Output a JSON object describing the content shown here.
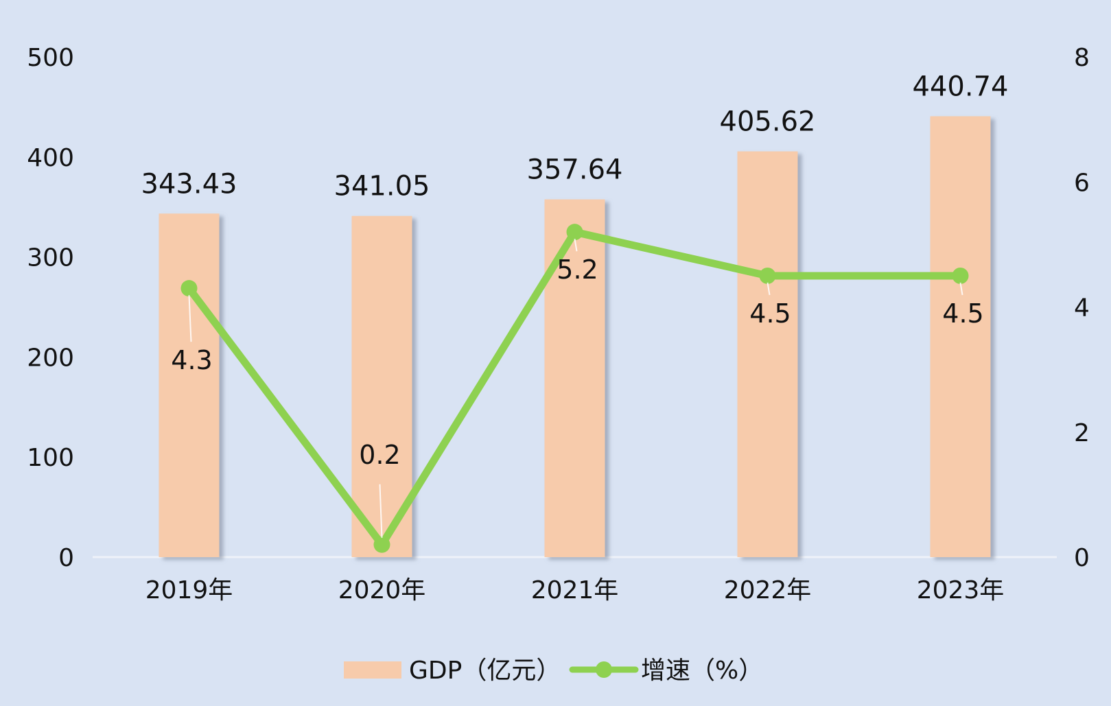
{
  "chart_data": {
    "type": "bar",
    "categories": [
      "2019年",
      "2020年",
      "2021年",
      "2022年",
      "2023年"
    ],
    "series": [
      {
        "name": "GDP（亿元）",
        "type": "bar",
        "axis": "left",
        "color": "#f7cbab",
        "values": [
          343.43,
          341.05,
          357.64,
          405.62,
          440.74
        ],
        "labels": [
          "343.43",
          "341.05",
          "357.64",
          "405.62",
          "440.74"
        ]
      },
      {
        "name": "增速（%）",
        "type": "line",
        "axis": "right",
        "color": "#8ed150",
        "values": [
          4.3,
          0.2,
          5.2,
          4.5,
          4.5
        ],
        "labels": [
          "4.3",
          "0.2",
          "5.2",
          "4.5",
          "4.5"
        ]
      }
    ],
    "y_left": {
      "min": 0,
      "max": 500,
      "ticks": [
        "0",
        "100",
        "200",
        "300",
        "400",
        "500"
      ]
    },
    "y_right": {
      "min": 0,
      "max": 8,
      "ticks": [
        "0",
        "2",
        "4",
        "6",
        "8"
      ]
    },
    "grid": false,
    "legend": "bottom",
    "background": "#d9e3f3",
    "title": "",
    "xlabel": "",
    "ylabel": ""
  }
}
